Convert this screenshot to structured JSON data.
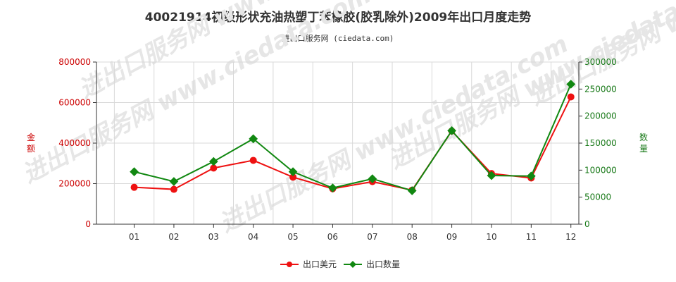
{
  "title": "40021914初级形状充油热塑丁苯橡胶(胶乳除外)2009年出口月度走势",
  "subtitle": "进出口服务网 (ciedata.com)",
  "watermark": "进出口服务网 www.ciedata.com",
  "colors": {
    "series1": "#ee1111",
    "series2": "#118811",
    "grid": "#d8d8d8",
    "axis": "#333333"
  },
  "chart_data": {
    "type": "line",
    "categories": [
      "01",
      "02",
      "03",
      "04",
      "05",
      "06",
      "07",
      "08",
      "09",
      "10",
      "11",
      "12"
    ],
    "y_left": {
      "label": "金额",
      "lim": [
        0,
        800000
      ],
      "ticks": [
        0,
        200000,
        400000,
        600000,
        800000
      ],
      "tick_labels": [
        "0",
        "200000",
        "400000",
        "600000",
        "800000"
      ]
    },
    "y_right": {
      "label": "数量",
      "lim": [
        0,
        300000
      ],
      "ticks": [
        0,
        50000,
        100000,
        150000,
        200000,
        250000,
        300000
      ],
      "tick_labels": [
        "0",
        "50000",
        "100000",
        "150000",
        "200000",
        "250000",
        "300000"
      ]
    },
    "grid": true,
    "legend_position": "bottom-center",
    "series": [
      {
        "name": "出口美元",
        "axis": "left",
        "values": [
          182000,
          172000,
          277000,
          315000,
          232000,
          175000,
          210000,
          168000,
          460000,
          250000,
          228000,
          628000
        ]
      },
      {
        "name": "出口数量",
        "axis": "right",
        "values": [
          97000,
          79000,
          116000,
          158000,
          97000,
          67000,
          84000,
          62000,
          173000,
          90000,
          89000,
          259000
        ]
      }
    ]
  }
}
